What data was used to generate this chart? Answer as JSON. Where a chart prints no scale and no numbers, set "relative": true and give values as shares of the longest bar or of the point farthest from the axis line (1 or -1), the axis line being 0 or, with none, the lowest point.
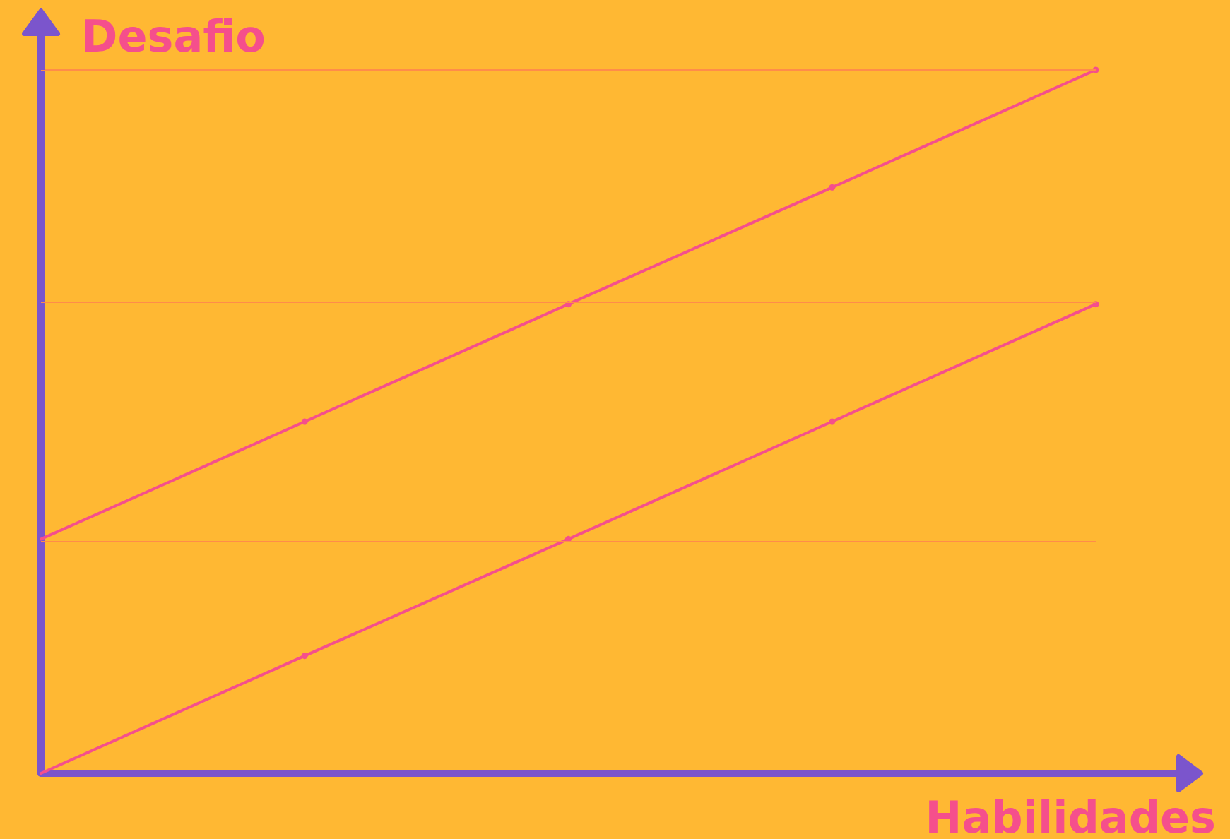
{
  "chart_data": {
    "type": "line",
    "relative": true,
    "xlabel": "Habilidades",
    "ylabel": "Desafio",
    "categories": [
      null,
      null,
      null,
      null,
      null
    ],
    "series": [
      {
        "color": "#f54f8c",
        "values": [
          0.333,
          0.5,
          0.667,
          0.833,
          1
        ]
      },
      {
        "color": "#f54f8c",
        "values": [
          0,
          0.167,
          0.333,
          0.5,
          0.667
        ]
      }
    ],
    "ref_lines": [
      {
        "axis": "y",
        "value": 0.333,
        "color": "#ff8c4a"
      },
      {
        "axis": "y",
        "value": 0.667,
        "color": "#ff8c4a"
      },
      {
        "axis": "y",
        "value": 1,
        "color": "#ff8c4a"
      }
    ],
    "marker": "circle",
    "line_style": "solid"
  }
}
